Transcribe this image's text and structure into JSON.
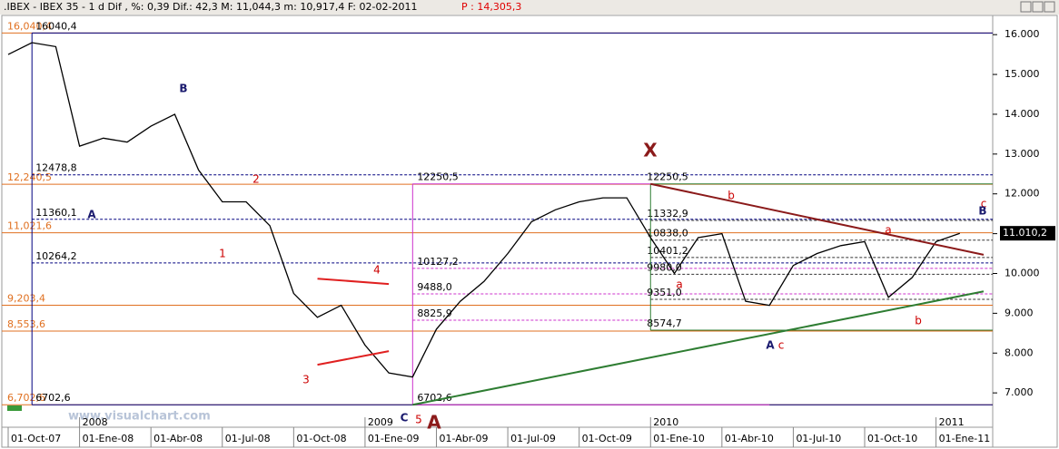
{
  "chart_data": {
    "type": "line",
    "title": ".IBEX - IBEX 35 -   1 d Dif , %: 0,39 Dif.: 42,3 M: 11,044,3 m: 10,917,4 F: 02-02-2011",
    "subtitle": "P : 14,305,3",
    "watermark": "www.visualchart.com",
    "color": "#000000",
    "x": [
      "2007-10",
      "2007-11",
      "2007-12",
      "2008-01",
      "2008-02",
      "2008-03",
      "2008-04",
      "2008-05",
      "2008-06",
      "2008-07",
      "2008-08",
      "2008-09",
      "2008-10",
      "2008-11",
      "2008-12",
      "2009-01",
      "2009-02",
      "2009-03",
      "2009-04",
      "2009-05",
      "2009-06",
      "2009-07",
      "2009-08",
      "2009-09",
      "2009-10",
      "2009-11",
      "2009-12",
      "2010-01",
      "2010-02",
      "2010-03",
      "2010-04",
      "2010-05",
      "2010-06",
      "2010-07",
      "2010-08",
      "2010-09",
      "2010-10",
      "2010-11",
      "2010-12",
      "2011-01",
      "2011-02"
    ],
    "values": [
      15500,
      15800,
      15700,
      13200,
      13400,
      13300,
      13700,
      14000,
      12600,
      11800,
      11800,
      11200,
      9500,
      8900,
      9200,
      8200,
      7500,
      7400,
      8600,
      9300,
      9800,
      10500,
      11300,
      11600,
      11800,
      11900,
      11900,
      10900,
      10000,
      10900,
      11000,
      9300,
      9200,
      10200,
      10500,
      10700,
      10800,
      9400,
      9900,
      10800,
      11010.2
    ],
    "xlim": [
      "2007-10",
      "2011-03"
    ],
    "ylim": [
      6160,
      16460
    ],
    "yticks": [
      {
        "value": 7000,
        "label": "7.000"
      },
      {
        "value": 8000,
        "label": "8.000"
      },
      {
        "value": 9000,
        "label": "9.000"
      },
      {
        "value": 10000,
        "label": "10.000"
      },
      {
        "value": 11000,
        "label": "11.000"
      },
      {
        "value": 12000,
        "label": "12.000"
      },
      {
        "value": 13000,
        "label": "13.000"
      },
      {
        "value": 14000,
        "label": "14.000"
      },
      {
        "value": 15000,
        "label": "15.000"
      },
      {
        "value": 16000,
        "label": "16.000"
      }
    ],
    "xticks": [
      {
        "value": "2007-10",
        "label": "01-Oct-07"
      },
      {
        "value": "2008-01",
        "label": "01-Ene-08"
      },
      {
        "value": "2008-04",
        "label": "01-Abr-08"
      },
      {
        "value": "2008-07",
        "label": "01-Jul-08"
      },
      {
        "value": "2008-10",
        "label": "01-Oct-08"
      },
      {
        "value": "2009-01",
        "label": "01-Ene-09"
      },
      {
        "value": "2009-04",
        "label": "01-Abr-09"
      },
      {
        "value": "2009-07",
        "label": "01-Jul-09"
      },
      {
        "value": "2009-10",
        "label": "01-Oct-09"
      },
      {
        "value": "2010-01",
        "label": "01-Ene-10"
      },
      {
        "value": "2010-04",
        "label": "01-Abr-10"
      },
      {
        "value": "2010-07",
        "label": "01-Jul-10"
      },
      {
        "value": "2010-10",
        "label": "01-Oct-10"
      },
      {
        "value": "2011-01",
        "label": "01-Ene-11"
      }
    ],
    "year_ticks": [
      {
        "value": "2008-01",
        "label": "2008"
      },
      {
        "value": "2009-01",
        "label": "2009"
      },
      {
        "value": "2010-01",
        "label": "2010"
      },
      {
        "value": "2011-01",
        "label": "2011"
      }
    ],
    "last_value": {
      "value": 11010.2,
      "label": "11.010,2"
    },
    "levels": [
      {
        "value": 16040.4,
        "label": "16,040,4",
        "color": "#e07020",
        "dash": false,
        "from": "2007-10",
        "to": "2011-03",
        "kind": "fib"
      },
      {
        "value": 12240.5,
        "label": "12,240,5",
        "color": "#e07020",
        "dash": false,
        "from": "2007-10",
        "to": "2011-03",
        "kind": "fib"
      },
      {
        "value": 11021.6,
        "label": "11,021,6",
        "color": "#e07020",
        "dash": false,
        "from": "2007-10",
        "to": "2011-03",
        "kind": "fib"
      },
      {
        "value": 9203.4,
        "label": "9,203,4",
        "color": "#e07020",
        "dash": false,
        "from": "2007-10",
        "to": "2011-03",
        "kind": "fib"
      },
      {
        "value": 8553.6,
        "label": "8,553,6",
        "color": "#e07020",
        "dash": false,
        "from": "2007-10",
        "to": "2011-03",
        "kind": "fib"
      },
      {
        "value": 6702.6,
        "label": "6,702,6",
        "color": "#e07020",
        "dash": false,
        "from": "2007-10",
        "to": "2011-03",
        "kind": "fib"
      },
      {
        "value": 16040.4,
        "label": "16040,4",
        "color": "#000080",
        "dash": false,
        "from": "2007-11",
        "to": "2011-03",
        "kind": "pivot"
      },
      {
        "value": 12478.8,
        "label": "12478,8",
        "color": "#000080",
        "dash": true,
        "from": "2007-11",
        "to": "2011-03",
        "kind": "pivot"
      },
      {
        "value": 11360.1,
        "label": "11360,1",
        "color": "#000080",
        "dash": true,
        "from": "2007-11",
        "to": "2011-03",
        "kind": "pivot"
      },
      {
        "value": 10264.2,
        "label": "10264,2",
        "color": "#000080",
        "dash": true,
        "from": "2007-11",
        "to": "2011-03",
        "kind": "pivot"
      },
      {
        "value": 6702.6,
        "label": "6702,6",
        "color": "#000080",
        "dash": false,
        "from": "2007-11",
        "to": "2011-03",
        "kind": "pivot"
      },
      {
        "value": 12250.5,
        "label": "12250,5",
        "color": "#cc33cc",
        "dash": false,
        "from": "2009-03",
        "to": "2010-01",
        "kind": "mid"
      },
      {
        "value": 10127.2,
        "label": "10127,2",
        "color": "#cc33cc",
        "dash": true,
        "from": "2009-03",
        "to": "2011-03",
        "kind": "mid"
      },
      {
        "value": 9488.0,
        "label": "9488,0",
        "color": "#cc33cc",
        "dash": true,
        "from": "2009-03",
        "to": "2011-03",
        "kind": "mid"
      },
      {
        "value": 8825.9,
        "label": "8825,9",
        "color": "#cc33cc",
        "dash": true,
        "from": "2009-03",
        "to": "2010-01",
        "kind": "mid"
      },
      {
        "value": 6702.6,
        "label": "6702,6",
        "color": "#cc33cc",
        "dash": false,
        "from": "2009-03",
        "to": "2010-06",
        "kind": "mid"
      },
      {
        "value": 12250.5,
        "label": "12250,5",
        "color": "#2e7d32",
        "dash": false,
        "from": "2010-01",
        "to": "2011-03",
        "kind": "right"
      },
      {
        "value": 11332.9,
        "label": "11332,9",
        "color": "#333333",
        "dash": true,
        "from": "2010-01",
        "to": "2011-03",
        "kind": "right"
      },
      {
        "value": 10838.0,
        "label": "10838,0",
        "color": "#333333",
        "dash": true,
        "from": "2010-01",
        "to": "2011-03",
        "kind": "right"
      },
      {
        "value": 10401.2,
        "label": "10401,2",
        "color": "#333333",
        "dash": true,
        "from": "2010-01",
        "to": "2011-03",
        "kind": "right"
      },
      {
        "value": 9980.0,
        "label": "9980,0",
        "color": "#333333",
        "dash": true,
        "from": "2010-01",
        "to": "2011-03",
        "kind": "right"
      },
      {
        "value": 9351.0,
        "label": "9351,0",
        "color": "#333333",
        "dash": true,
        "from": "2010-01",
        "to": "2011-03",
        "kind": "right"
      },
      {
        "value": 8574.7,
        "label": "8574,7",
        "color": "#2e7d32",
        "dash": false,
        "from": "2010-01",
        "to": "2011-03",
        "kind": "right"
      }
    ],
    "verticals": [
      {
        "x": "2007-11",
        "from": 6702.6,
        "to": 16040.4,
        "color": "#000080"
      },
      {
        "x": "2009-03",
        "from": 6702.6,
        "to": 12250.5,
        "color": "#cc33cc"
      },
      {
        "x": "2010-01",
        "from": 8574.7,
        "to": 12250.5,
        "color": "#2e7d32"
      }
    ],
    "trendlines": [
      {
        "color": "#8b1a1a",
        "points": [
          {
            "x": "2010-01",
            "value": 12250
          },
          {
            "x": "2011-03",
            "value": 10470
          }
        ]
      },
      {
        "color": "#2e7d32",
        "points": [
          {
            "x": "2009-03",
            "value": 6702
          },
          {
            "x": "2011-03",
            "value": 9550
          }
        ]
      },
      {
        "color": "#e02020",
        "points": [
          {
            "x": "2008-11",
            "value": 9870
          },
          {
            "x": "2009-02",
            "value": 9735
          }
        ]
      },
      {
        "color": "#e02020",
        "points": [
          {
            "x": "2008-11",
            "value": 7707
          },
          {
            "x": "2009-02",
            "value": 8048
          }
        ]
      }
    ],
    "annotations": [
      {
        "text": "A",
        "color": "#1a1a6e",
        "big": false
      },
      {
        "text": "B",
        "color": "#1a1a6e",
        "big": false
      },
      {
        "text": "1",
        "color": "#cc0000",
        "big": false
      },
      {
        "text": "2",
        "color": "#cc0000",
        "big": false
      },
      {
        "text": "3",
        "color": "#cc0000",
        "big": false
      },
      {
        "text": "4",
        "color": "#cc0000",
        "big": false
      },
      {
        "text": "C",
        "color": "#1a1a6e",
        "big": false
      },
      {
        "text": "5",
        "color": "#cc0000",
        "big": false
      },
      {
        "text": "A",
        "color": "#8b1a1a",
        "big": true
      },
      {
        "text": "X",
        "color": "#8b1a1a",
        "big": true
      },
      {
        "text": "b",
        "color": "#cc0000",
        "big": false
      },
      {
        "text": "a",
        "color": "#cc0000",
        "big": false
      },
      {
        "text": "a",
        "color": "#cc0000",
        "big": false
      },
      {
        "text": "A",
        "color": "#1a1a6e",
        "big": false
      },
      {
        "text": "c",
        "color": "#cc0000",
        "big": false
      },
      {
        "text": "b",
        "color": "#cc0000",
        "big": false
      },
      {
        "text": "c",
        "color": "#cc0000",
        "big": false
      },
      {
        "text": "B",
        "color": "#1a1a6e",
        "big": false
      }
    ]
  }
}
